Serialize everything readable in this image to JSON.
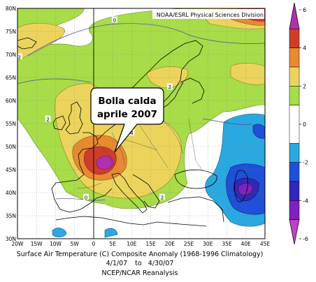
{
  "credit": "NOAA/ESRL Physical Sciences Division",
  "callout": {
    "line1": "Bolla calda",
    "line2": "aprile 2007"
  },
  "lat_labels": [
    "80N",
    "75N",
    "70N",
    "65N",
    "60N",
    "55N",
    "50N",
    "45N",
    "40N",
    "35N",
    "30N"
  ],
  "lon_labels": [
    "20W",
    "15W",
    "10W",
    "5W",
    "0",
    "5E",
    "10E",
    "15E",
    "20E",
    "25E",
    "30E",
    "35E",
    "40E",
    "45E"
  ],
  "colorbar": {
    "ticks": [
      "6",
      "4",
      "2",
      "0",
      "-2",
      "-4",
      "-6"
    ],
    "bands": [
      {
        "from": 5,
        "to": 6,
        "color": "#b030b0"
      },
      {
        "from": 4,
        "to": 5,
        "color": "#d03c2c"
      },
      {
        "from": 3,
        "to": 4,
        "color": "#e88a30"
      },
      {
        "from": 2,
        "to": 3,
        "color": "#ecd45c"
      },
      {
        "from": 1,
        "to": 2,
        "color": "#a8dc48"
      },
      {
        "from": -1,
        "to": 1,
        "color": "#ffffff"
      },
      {
        "from": -2,
        "to": -1,
        "color": "#2aa8e0"
      },
      {
        "from": -3,
        "to": -2,
        "color": "#2050d8"
      },
      {
        "from": -4,
        "to": -3,
        "color": "#3028b8"
      },
      {
        "from": -5,
        "to": -4,
        "color": "#8020c0"
      },
      {
        "from": -6,
        "to": -5,
        "color": "#c040c8"
      }
    ]
  },
  "map": {
    "lon_range": [
      -20,
      45
    ],
    "lat_range": [
      30,
      80
    ],
    "contour_labels": [
      {
        "text": "0",
        "lon": 5.5,
        "lat": 77.5
      },
      {
        "text": "2",
        "lon": -19.5,
        "lat": 69.5
      },
      {
        "text": "2",
        "lon": 20,
        "lat": 63
      },
      {
        "text": "2",
        "lon": -12,
        "lat": 56
      },
      {
        "text": "4",
        "lon": 10,
        "lat": 53
      },
      {
        "text": "0",
        "lon": -2,
        "lat": 39
      },
      {
        "text": "2",
        "lon": 18,
        "lat": 39
      }
    ]
  },
  "caption": {
    "line1": "Surface Air Temperature (C) Composite Anomaly (1968-1996 Climatology)",
    "date_start": "4/1/07",
    "date_sep": "to",
    "date_end": "4/30/07",
    "line3": "NCEP/NCAR Reanalysis"
  }
}
